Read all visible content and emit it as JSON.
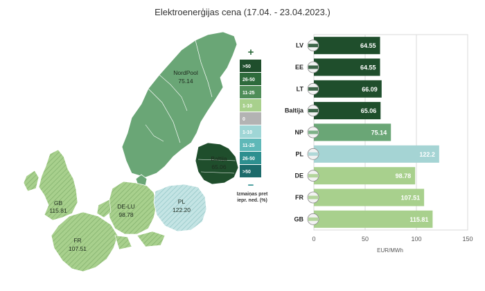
{
  "title": "Elektroenerģijas cena (17.04. - 23.04.2023.)",
  "map": {
    "regions": [
      {
        "id": "nordpool",
        "label": "NordPool",
        "value": "75.14"
      },
      {
        "id": "baltija",
        "label": "Baltija",
        "value": "65.06"
      },
      {
        "id": "gb",
        "label": "GB",
        "value": "115.81"
      },
      {
        "id": "delu",
        "label": "DE-LU",
        "value": "98.78"
      },
      {
        "id": "pl",
        "label": "PL",
        "value": "122.20"
      },
      {
        "id": "fr",
        "label": "FR",
        "value": "107.51"
      }
    ],
    "legend": {
      "plus": "+",
      "minus": "−",
      "items": [
        {
          "label": ">50",
          "color": "#1f4e2c"
        },
        {
          "label": "26-50",
          "color": "#2e6b3c"
        },
        {
          "label": "11-25",
          "color": "#4f8d58"
        },
        {
          "label": "1-10",
          "color": "#a8d08d"
        },
        {
          "label": "0",
          "color": "#b3b3b3"
        },
        {
          "label": "1-10",
          "color": "#9fd6d6"
        },
        {
          "label": "11-25",
          "color": "#5fb8b8"
        },
        {
          "label": "26-50",
          "color": "#2d8f8f"
        },
        {
          "label": ">50",
          "color": "#1c6b6b"
        }
      ],
      "caption_line1": "Izmaiņas pret",
      "caption_line2": "iepr. ned. (%)"
    },
    "colors": {
      "nordic": "#6aa676",
      "baltic": "#1f4e2c",
      "west": "#a8d08d",
      "pl": "#b6dede",
      "outline": "#ffffff"
    }
  },
  "chart_data": {
    "type": "bar",
    "orientation": "horizontal",
    "categories": [
      "LV",
      "EE",
      "LT",
      "Baltija",
      "NP",
      "PL",
      "DE",
      "FR",
      "GB"
    ],
    "values": [
      64.55,
      64.55,
      66.09,
      65.06,
      75.14,
      122.2,
      98.78,
      107.51,
      115.81
    ],
    "value_labels": [
      "64.55",
      "64.55",
      "66.09",
      "65.06",
      "75.14",
      "122.2",
      "98.78",
      "107.51",
      "115.81"
    ],
    "colors": [
      "#1f4e2c",
      "#1f4e2c",
      "#1f4e2c",
      "#1f4e2c",
      "#6aa676",
      "#a5d4d4",
      "#a8d08d",
      "#a8d08d",
      "#a8d08d"
    ],
    "xlabel": "EUR/MWh",
    "xlim": [
      0,
      150
    ],
    "xticks": [
      0,
      50,
      100,
      150
    ],
    "grid": true
  }
}
